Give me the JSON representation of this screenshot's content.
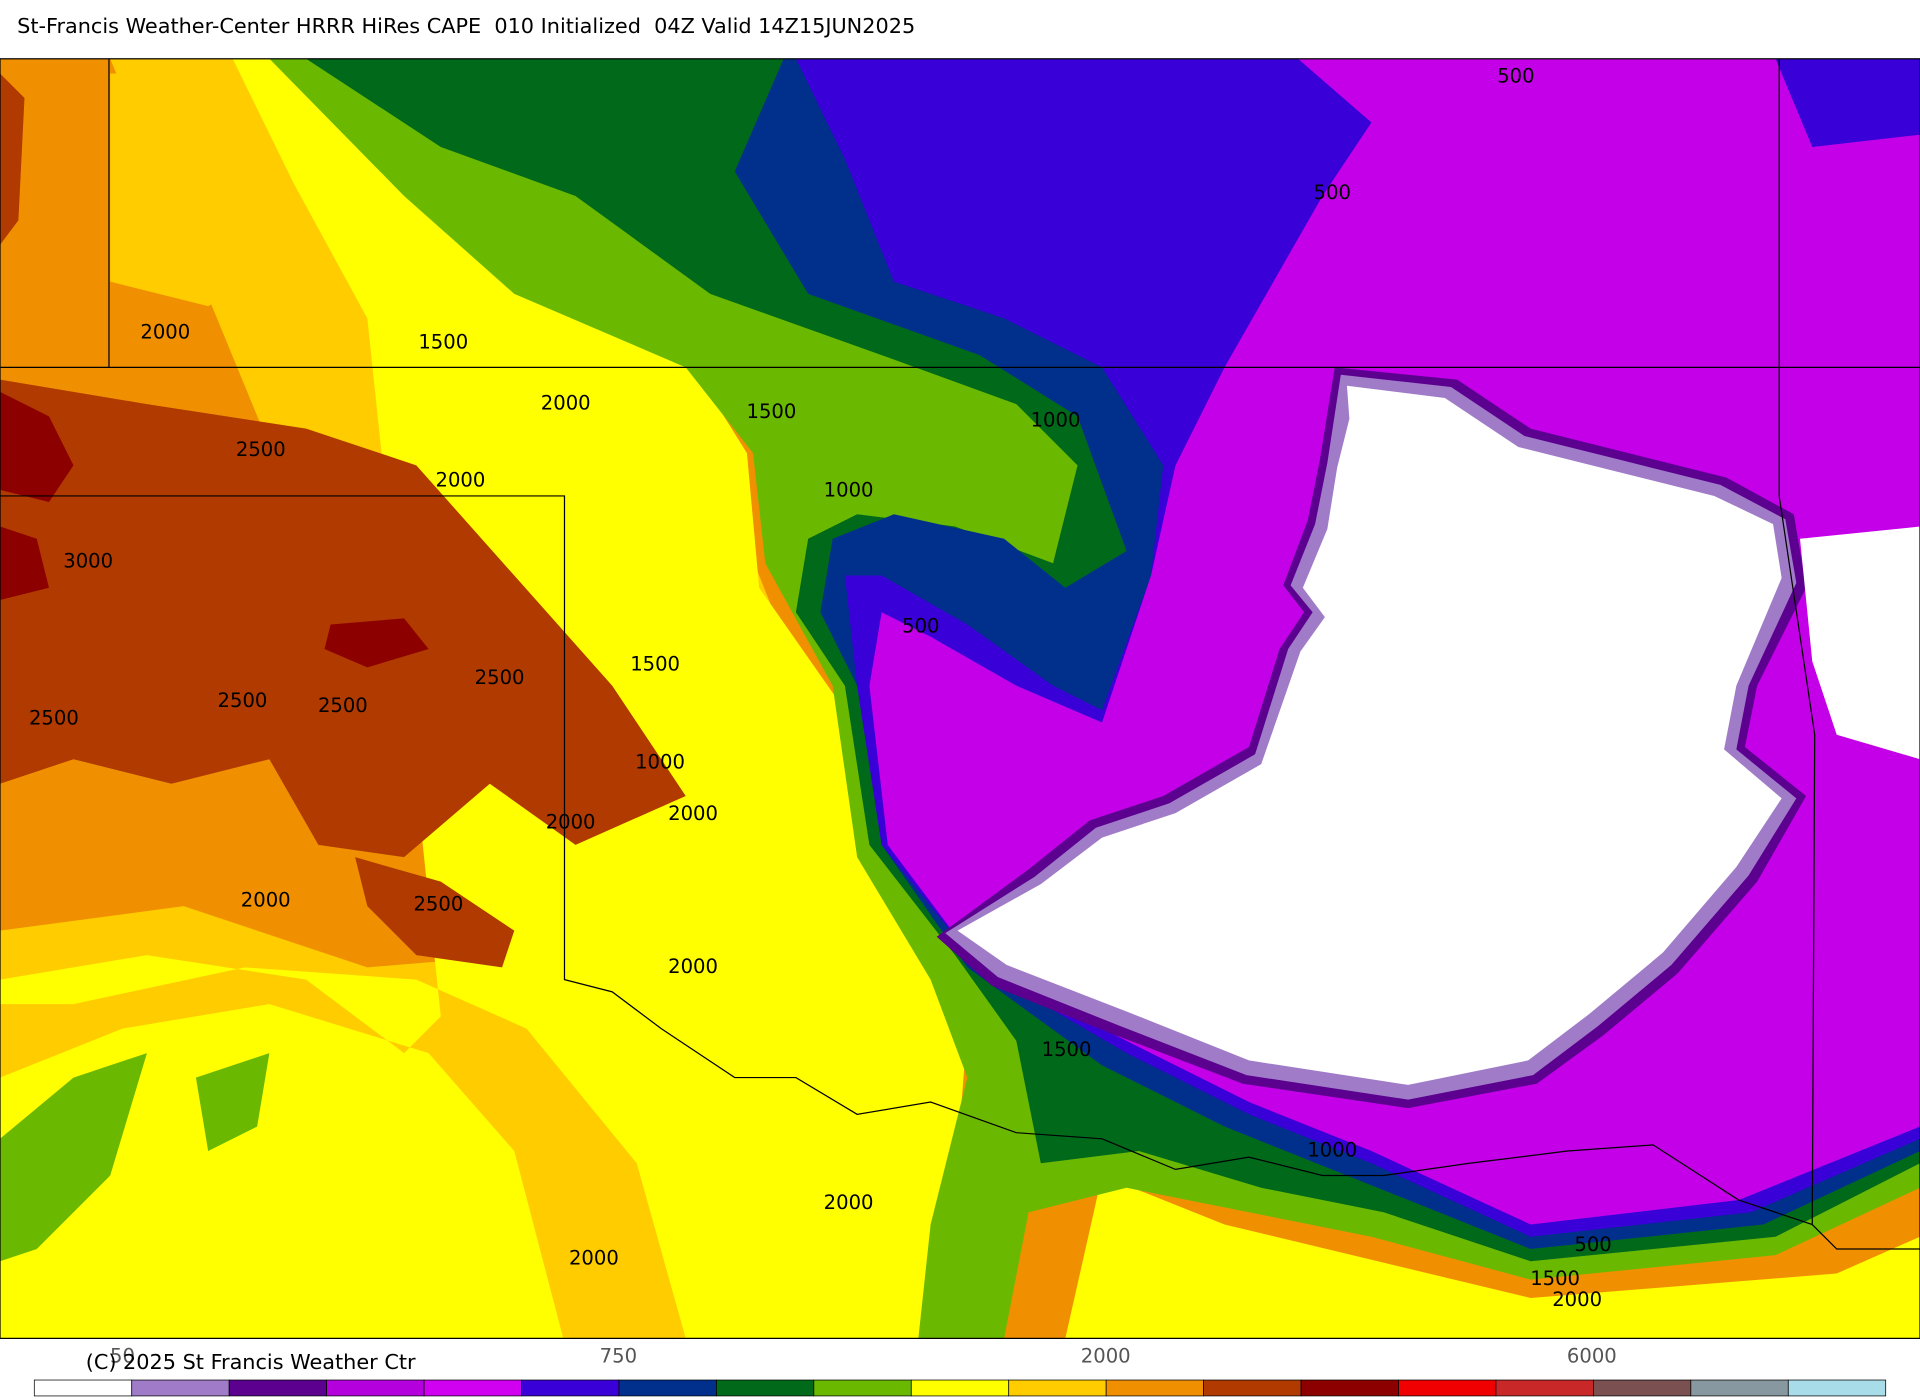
{
  "header": {
    "title": "St-Francis Weather-Center HRRR HiRes CAPE  010 Initialized  04Z Valid 14Z15JUN2025"
  },
  "contour_labels": [
    "500",
    "500",
    "2000",
    "1500",
    "2000",
    "1500",
    "1000",
    "2500",
    "2000",
    "1000",
    "3000",
    "500",
    "1500",
    "2500",
    "2500",
    "2500",
    "2500",
    "1000",
    "2000",
    "2000",
    "2000",
    "2500",
    "2000",
    "1500",
    "1000",
    "2000",
    "2000",
    "500",
    "1500",
    "2000"
  ],
  "colorbar": {
    "colors": [
      "#ffffff",
      "#a07cc8",
      "#5c0090",
      "#b400dc",
      "#d000f0",
      "#3a00d8",
      "#00308c",
      "#006a1a",
      "#6ab800",
      "#ffff00",
      "#ffcc00",
      "#f09000",
      "#b03a00",
      "#8c0000",
      "#f00000",
      "#c82828",
      "#7a5050",
      "#8898a0",
      "#a8dce8"
    ],
    "labels": [
      "50",
      "750",
      "2000",
      "6000"
    ]
  },
  "footer": {
    "copyright": "(C) 2025 St Francis Weather Ctr"
  }
}
